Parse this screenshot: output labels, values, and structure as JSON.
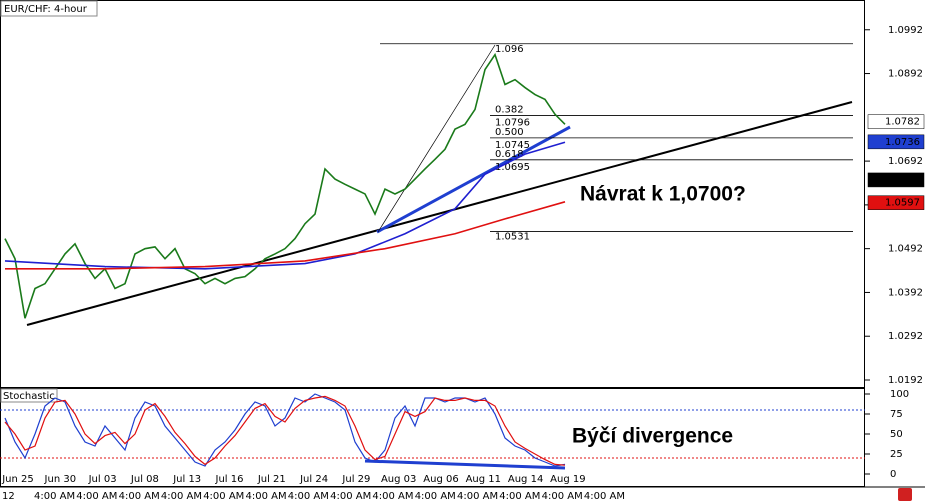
{
  "chart_data": {
    "type": "line",
    "title": "EUR/CHF: 4-hour",
    "ylim": [
      1.0176,
      1.106
    ],
    "yticks": [
      1.0992,
      1.0892,
      1.0692,
      1.0592,
      1.0492,
      1.0392,
      1.0292,
      1.0192
    ],
    "xlim": [
      0,
      56
    ],
    "x_labels": [
      "Jun 25",
      "Jun 30",
      "Jul 03",
      "Jul 08",
      "Jul 13",
      "Jul 16",
      "Jul 21",
      "Jul 24",
      "Jul 29",
      "Aug 03",
      "Aug 06",
      "Aug 11",
      "Aug 14",
      "Aug 19"
    ],
    "time_labels": [
      "12",
      "4:00 AM",
      "4:00 AM",
      "4:00 AM",
      "4:00 AM",
      "4:00 AM",
      "4:00 AM",
      "4:00 AM",
      "4:00 AM",
      "4:00 AM",
      "4:00 AM",
      "4:00 AM",
      "4:00 AM",
      "4:00 AM",
      "4:00 AM"
    ],
    "series": [
      {
        "name": "Price",
        "color": "#1a7a1a",
        "values": [
          1.0515,
          1.0469,
          1.0333,
          1.0401,
          1.0412,
          1.0446,
          1.048,
          1.0503,
          1.0458,
          1.0424,
          1.0446,
          1.0401,
          1.0412,
          1.048,
          1.0492,
          1.0496,
          1.0469,
          1.0492,
          1.0446,
          1.0435,
          1.0412,
          1.0424,
          1.0412,
          1.0424,
          1.0428,
          1.0446,
          1.0469,
          1.048,
          1.0492,
          1.0515,
          1.0549,
          1.0571,
          1.0674,
          1.0651,
          1.0639,
          1.0628,
          1.0617,
          1.0571,
          1.0628,
          1.0617,
          1.0628,
          1.0651,
          1.0674,
          1.0696,
          1.0719,
          1.0765,
          1.0776,
          1.081,
          1.0901,
          1.0935,
          1.0867,
          1.0878,
          1.086,
          1.0844,
          1.0833,
          1.0799,
          1.0776
        ]
      },
      {
        "name": "MA blue",
        "color": "#1f1fd0",
        "x": [
          0,
          10,
          20,
          30,
          35,
          40,
          45,
          48,
          52,
          56
        ],
        "values": [
          1.0464,
          1.0451,
          1.0446,
          1.0458,
          1.048,
          1.0526,
          1.0583,
          1.0662,
          1.0708,
          1.0735
        ]
      },
      {
        "name": "MA red",
        "color": "#e01010",
        "x": [
          0,
          10,
          20,
          30,
          38,
          45,
          50,
          56
        ],
        "values": [
          1.0446,
          1.0446,
          1.0451,
          1.0464,
          1.0492,
          1.0526,
          1.056,
          1.0599
        ]
      }
    ],
    "fib_levels": [
      {
        "value": 1.096
      },
      {
        "value": 1.0796,
        "ratio": "0.382"
      },
      {
        "value": 1.0745,
        "ratio": "0.500"
      },
      {
        "value": 1.0695,
        "ratio": "0.618"
      },
      {
        "value": 1.0531
      }
    ],
    "price_tags": [
      {
        "value": 1.0782,
        "color": "#ffffff",
        "text_color": "#000000"
      },
      {
        "value": 1.0736,
        "color": "#1f3fd0",
        "text_color": "#ffffff"
      },
      {
        "value": 1.0649,
        "color": "#000000",
        "text_color": "#ffffff"
      },
      {
        "value": 1.0597,
        "color": "#e01010",
        "text_color": "#ffffff"
      }
    ],
    "annotations": [
      "Návrat k 1,0700?",
      "Býčí divergence"
    ],
    "stochastic": {
      "title": "Stochastic",
      "ylim": [
        0,
        100
      ],
      "yticks": [
        100,
        75,
        50,
        25,
        0
      ],
      "levels": [
        80,
        20
      ],
      "k": [
        70,
        40,
        20,
        50,
        85,
        95,
        90,
        60,
        40,
        35,
        60,
        45,
        30,
        70,
        90,
        85,
        60,
        45,
        30,
        15,
        10,
        30,
        40,
        55,
        75,
        90,
        85,
        60,
        70,
        95,
        90,
        100,
        95,
        90,
        80,
        40,
        20,
        15,
        30,
        70,
        85,
        60,
        95,
        95,
        90,
        95,
        95,
        90,
        95,
        75,
        45,
        35,
        30,
        20,
        15,
        10,
        12
      ],
      "d": [
        65,
        50,
        30,
        35,
        70,
        90,
        92,
        75,
        50,
        38,
        48,
        52,
        38,
        50,
        80,
        88,
        72,
        52,
        38,
        22,
        12,
        20,
        35,
        48,
        65,
        82,
        88,
        72,
        65,
        82,
        92,
        95,
        97,
        92,
        85,
        60,
        30,
        18,
        22,
        50,
        78,
        72,
        78,
        95,
        92,
        92,
        95,
        92,
        92,
        85,
        60,
        40,
        32,
        25,
        18,
        12,
        11
      ]
    }
  }
}
